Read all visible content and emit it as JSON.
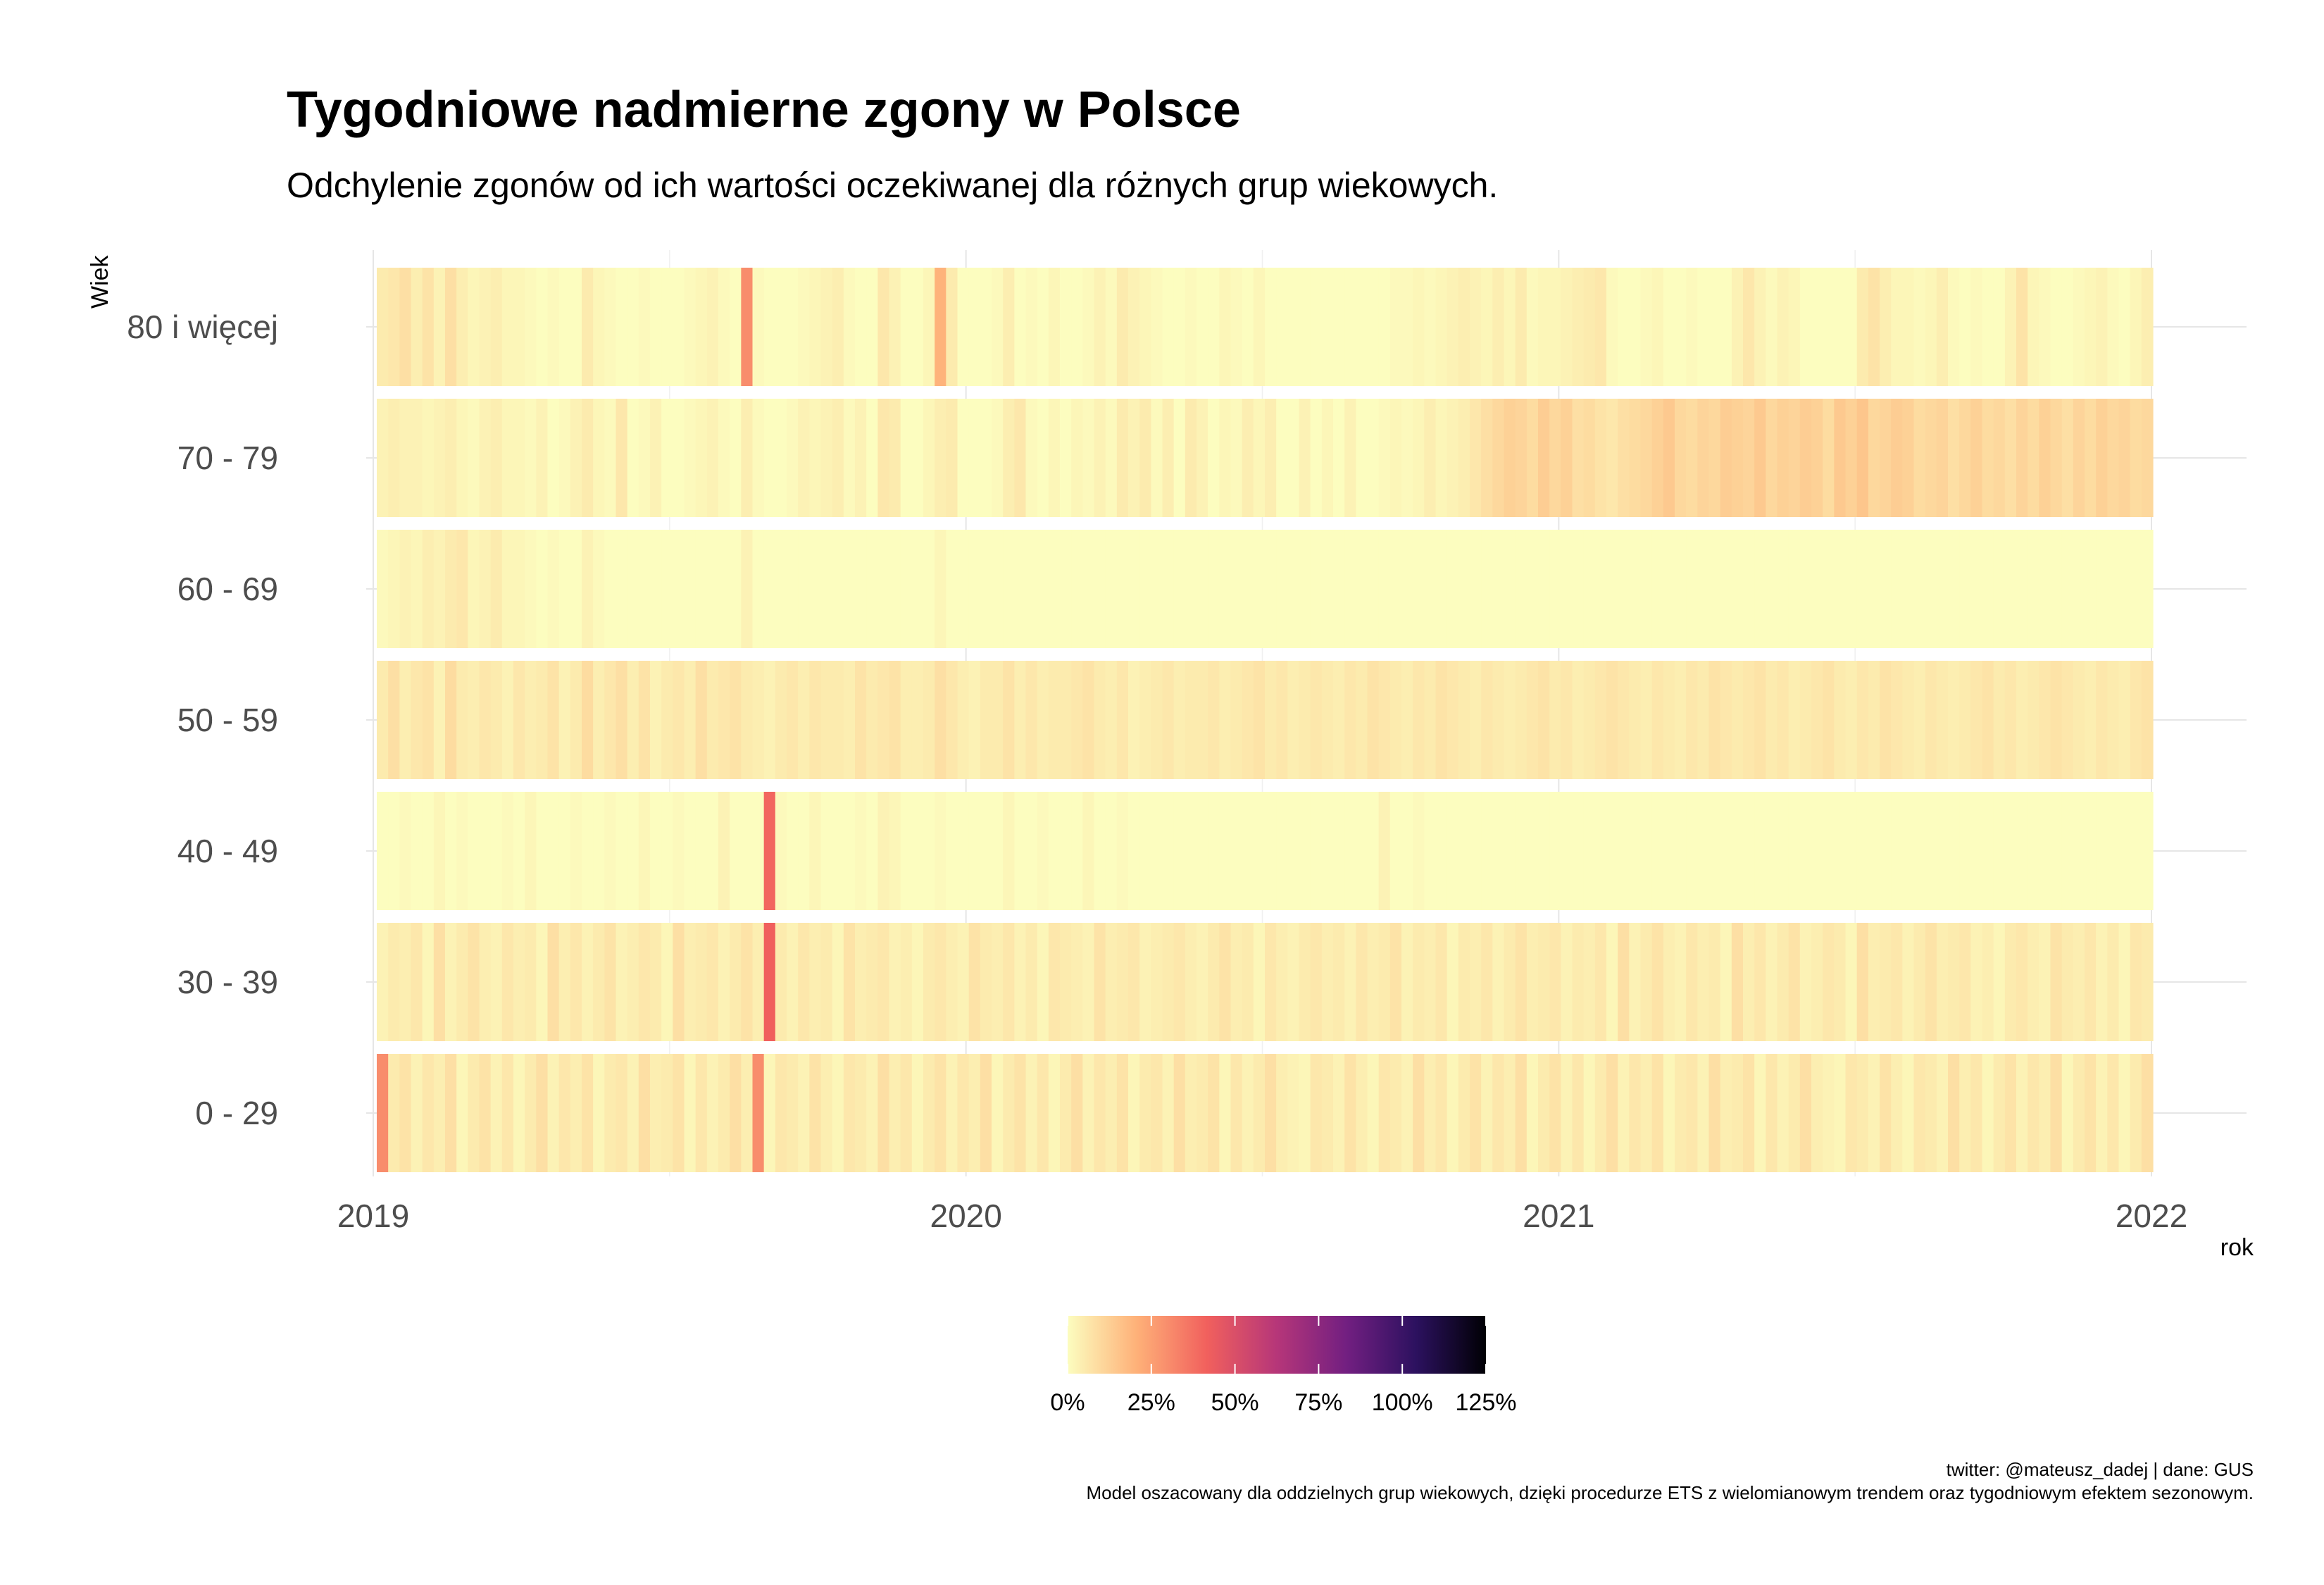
{
  "chart_data": {
    "type": "heatmap",
    "title": "Tygodniowe nadmierne zgony w Polsce",
    "subtitle": "Odchylenie zgonów od ich wartości oczekiwanej dla różnych grup wiekowych.",
    "xlabel": "rok",
    "ylabel": "Wiek",
    "x_ticks": [
      "2019",
      "2020",
      "2021",
      "2022"
    ],
    "y_categories": [
      "80 i więcej",
      "70 - 79",
      "60 - 69",
      "50 - 59",
      "40 - 49",
      "30 - 39",
      "0 - 29"
    ],
    "weeks_per_row": 156,
    "color_scale": {
      "name": "magma (reversed)",
      "domain_percent": [
        0,
        125
      ],
      "stops": [
        "#fcfdbf",
        "#feb078",
        "#f1605d",
        "#b63679",
        "#721f81",
        "#2c115f",
        "#000004"
      ],
      "legend_ticks": [
        "0%",
        "25%",
        "50%",
        "75%",
        "100%",
        "125%"
      ]
    },
    "excess_percent": {
      "80 i więcej": [
        5,
        6,
        8,
        4,
        7,
        3,
        8,
        4,
        2,
        3,
        4,
        2,
        2,
        1,
        0,
        1,
        0,
        0,
        5,
        2,
        1,
        0,
        0,
        1,
        0,
        0,
        0,
        1,
        2,
        3,
        1,
        0,
        30,
        1,
        0,
        0,
        0,
        1,
        2,
        3,
        4,
        1,
        0,
        0,
        6,
        3,
        0,
        0,
        2,
        20,
        5,
        0,
        0,
        0,
        1,
        4,
        0,
        1,
        0,
        2,
        0,
        0,
        1,
        3,
        1,
        5,
        3,
        2,
        1,
        0,
        0,
        1,
        0,
        0,
        2,
        1,
        0,
        2,
        0,
        0,
        0,
        0,
        0,
        0,
        0,
        0,
        0,
        0,
        0,
        1,
        1,
        2,
        1,
        2,
        3,
        4,
        3,
        2,
        4,
        2,
        5,
        1,
        2,
        2,
        3,
        4,
        5,
        6,
        1,
        0,
        0,
        1,
        2,
        0,
        0,
        1,
        0,
        0,
        0,
        3,
        6,
        3,
        1,
        3,
        2,
        0,
        0,
        0,
        0,
        0,
        5,
        7,
        4,
        2,
        2,
        1,
        2,
        4,
        1,
        0,
        1,
        0,
        0,
        3,
        7,
        2,
        1,
        0,
        0,
        1,
        2,
        3,
        1,
        0,
        2,
        4
      ],
      "70 - 79": [
        3,
        4,
        3,
        3,
        2,
        3,
        4,
        2,
        1,
        3,
        4,
        2,
        2,
        1,
        3,
        0,
        1,
        3,
        5,
        2,
        1,
        6,
        0,
        1,
        3,
        0,
        0,
        1,
        2,
        3,
        1,
        0,
        4,
        1,
        0,
        0,
        1,
        3,
        2,
        3,
        4,
        1,
        3,
        0,
        6,
        5,
        0,
        0,
        2,
        4,
        5,
        0,
        0,
        0,
        1,
        4,
        6,
        1,
        0,
        2,
        0,
        2,
        1,
        3,
        1,
        5,
        3,
        5,
        1,
        4,
        0,
        5,
        3,
        0,
        2,
        1,
        4,
        2,
        4,
        0,
        0,
        3,
        0,
        2,
        0,
        3,
        0,
        0,
        1,
        2,
        1,
        2,
        4,
        2,
        3,
        4,
        6,
        8,
        10,
        12,
        11,
        9,
        13,
        10,
        12,
        8,
        9,
        7,
        6,
        8,
        9,
        10,
        12,
        14,
        10,
        9,
        11,
        10,
        13,
        12,
        11,
        14,
        10,
        12,
        11,
        13,
        12,
        9,
        14,
        12,
        15,
        10,
        11,
        13,
        12,
        9,
        10,
        11,
        8,
        10,
        12,
        9,
        10,
        8,
        11,
        9,
        12,
        10,
        8,
        11,
        9,
        12,
        10,
        11,
        9,
        10
      ],
      "60 - 69": [
        1,
        2,
        3,
        2,
        4,
        3,
        5,
        6,
        2,
        3,
        5,
        2,
        2,
        1,
        0,
        1,
        0,
        0,
        3,
        1,
        0,
        0,
        0,
        0,
        0,
        0,
        0,
        0,
        0,
        0,
        0,
        0,
        3,
        0,
        0,
        0,
        0,
        0,
        0,
        0,
        0,
        0,
        0,
        0,
        0,
        0,
        0,
        0,
        0,
        2,
        0,
        0,
        0,
        0,
        0,
        0,
        0,
        0,
        0,
        0,
        0,
        0,
        0,
        0,
        0,
        0,
        0,
        0,
        0,
        0,
        0,
        0,
        0,
        0,
        0,
        0,
        0,
        0,
        0,
        0,
        0,
        0,
        0,
        0,
        0,
        0,
        0,
        0,
        0,
        0,
        0,
        0,
        0,
        0,
        0,
        0,
        0,
        0,
        0,
        0,
        0,
        0,
        0,
        0,
        0,
        0,
        0,
        0,
        0,
        0,
        0,
        0,
        0,
        0,
        0,
        0,
        0,
        0,
        0,
        0,
        0,
        0,
        0,
        0,
        0,
        0,
        0,
        0,
        0,
        0,
        0,
        0,
        0,
        0,
        0,
        0,
        0,
        0,
        0,
        0,
        0,
        0,
        0,
        0,
        0,
        0,
        0,
        0,
        0,
        0,
        0,
        0,
        0,
        0,
        0,
        0
      ],
      "50 - 59": [
        5,
        8,
        4,
        6,
        7,
        3,
        9,
        5,
        4,
        6,
        5,
        3,
        6,
        4,
        5,
        7,
        3,
        5,
        9,
        4,
        6,
        8,
        4,
        7,
        3,
        5,
        6,
        4,
        8,
        5,
        6,
        7,
        5,
        4,
        3,
        5,
        6,
        4,
        6,
        5,
        5,
        4,
        7,
        5,
        6,
        7,
        4,
        4,
        5,
        8,
        6,
        4,
        3,
        5,
        5,
        7,
        4,
        6,
        4,
        5,
        5,
        6,
        7,
        5,
        4,
        6,
        3,
        4,
        5,
        6,
        4,
        5,
        5,
        6,
        4,
        5,
        6,
        7,
        5,
        6,
        4,
        5,
        6,
        5,
        4,
        6,
        5,
        7,
        6,
        5,
        4,
        6,
        5,
        7,
        6,
        5,
        4,
        6,
        5,
        4,
        5,
        6,
        7,
        5,
        6,
        4,
        5,
        6,
        7,
        6,
        5,
        4,
        6,
        5,
        4,
        6,
        5,
        7,
        6,
        5,
        6,
        7,
        5,
        6,
        4,
        5,
        6,
        7,
        5,
        4,
        6,
        5,
        7,
        6,
        5,
        4,
        6,
        5,
        4,
        5,
        6,
        7,
        5,
        6,
        4,
        5,
        6,
        7,
        6,
        5,
        4,
        6,
        5,
        4,
        6,
        7
      ],
      "40 - 49": [
        0,
        0,
        1,
        0,
        0,
        2,
        0,
        1,
        0,
        0,
        0,
        1,
        0,
        2,
        0,
        0,
        0,
        1,
        0,
        0,
        1,
        0,
        0,
        2,
        0,
        0,
        1,
        0,
        0,
        0,
        3,
        0,
        0,
        0,
        40,
        1,
        0,
        0,
        2,
        0,
        0,
        0,
        1,
        0,
        3,
        2,
        0,
        0,
        0,
        1,
        0,
        0,
        0,
        0,
        0,
        2,
        0,
        0,
        1,
        0,
        0,
        0,
        2,
        0,
        0,
        1,
        0,
        0,
        0,
        0,
        0,
        0,
        0,
        0,
        0,
        0,
        0,
        0,
        0,
        0,
        0,
        0,
        0,
        0,
        0,
        0,
        0,
        0,
        3,
        0,
        0,
        1,
        0,
        0,
        0,
        0,
        0,
        0,
        0,
        0,
        0,
        0,
        0,
        0,
        0,
        0,
        0,
        0,
        0,
        0,
        0,
        0,
        0,
        0,
        0,
        0,
        0,
        0,
        0,
        0,
        0,
        0,
        0,
        0,
        0,
        0,
        0,
        0,
        0,
        0,
        0,
        0,
        0,
        0,
        0,
        0,
        0,
        0,
        0,
        0,
        0,
        0,
        0,
        0,
        0,
        0,
        0,
        0,
        0,
        0,
        0,
        0,
        0,
        0,
        0,
        0
      ],
      "30 - 39": [
        3,
        5,
        4,
        6,
        2,
        8,
        3,
        5,
        7,
        4,
        3,
        6,
        4,
        5,
        2,
        8,
        4,
        6,
        3,
        5,
        7,
        3,
        4,
        6,
        5,
        2,
        8,
        4,
        5,
        6,
        3,
        5,
        7,
        4,
        42,
        5,
        3,
        6,
        4,
        5,
        2,
        7,
        4,
        5,
        6,
        3,
        4,
        2,
        5,
        6,
        4,
        3,
        7,
        5,
        4,
        6,
        3,
        5,
        2,
        6,
        5,
        4,
        3,
        7,
        4,
        5,
        6,
        3,
        4,
        5,
        6,
        4,
        3,
        5,
        7,
        4,
        5,
        2,
        6,
        4,
        3,
        5,
        6,
        4,
        5,
        3,
        6,
        4,
        5,
        7,
        3,
        5,
        4,
        6,
        2,
        5,
        4,
        6,
        3,
        5,
        7,
        4,
        5,
        6,
        3,
        5,
        4,
        6,
        2,
        8,
        3,
        5,
        7,
        4,
        3,
        6,
        4,
        5,
        2,
        8,
        4,
        6,
        3,
        5,
        7,
        3,
        4,
        6,
        5,
        2,
        8,
        4,
        5,
        6,
        3,
        5,
        7,
        4,
        5,
        6,
        3,
        4,
        2,
        5,
        6,
        4,
        3,
        7,
        5,
        4,
        6,
        3,
        5,
        2,
        6,
        5
      ],
      "0 - 29": [
        30,
        5,
        7,
        3,
        6,
        4,
        8,
        2,
        5,
        7,
        3,
        6,
        2,
        5,
        8,
        3,
        6,
        4,
        7,
        2,
        5,
        6,
        3,
        8,
        4,
        5,
        7,
        2,
        6,
        3,
        5,
        8,
        4,
        30,
        2,
        6,
        5,
        3,
        7,
        4,
        2,
        6,
        5,
        3,
        8,
        4,
        6,
        2,
        5,
        7,
        3,
        6,
        4,
        8,
        2,
        5,
        7,
        3,
        6,
        2,
        5,
        8,
        3,
        6,
        4,
        7,
        2,
        5,
        6,
        3,
        8,
        4,
        5,
        7,
        2,
        6,
        3,
        5,
        8,
        4,
        3,
        2,
        6,
        5,
        3,
        7,
        4,
        2,
        6,
        5,
        3,
        8,
        4,
        6,
        2,
        5,
        7,
        3,
        6,
        4,
        8,
        2,
        5,
        7,
        3,
        6,
        2,
        5,
        8,
        3,
        6,
        4,
        7,
        2,
        5,
        6,
        3,
        8,
        4,
        5,
        7,
        2,
        6,
        3,
        5,
        8,
        4,
        3,
        2,
        6,
        5,
        3,
        7,
        4,
        2,
        6,
        5,
        3,
        8,
        4,
        6,
        2,
        5,
        7,
        3,
        6,
        4,
        8,
        2,
        5,
        7,
        3,
        6,
        2,
        5,
        8
      ]
    },
    "caption_line1": "twitter: @mateusz_dadej | dane: GUS",
    "caption_line2": "Model oszacowany dla oddzielnych grup wiekowych, dzięki procedurze ETS z wielomianowym trendem oraz tygodniowym efektem sezonowym."
  }
}
